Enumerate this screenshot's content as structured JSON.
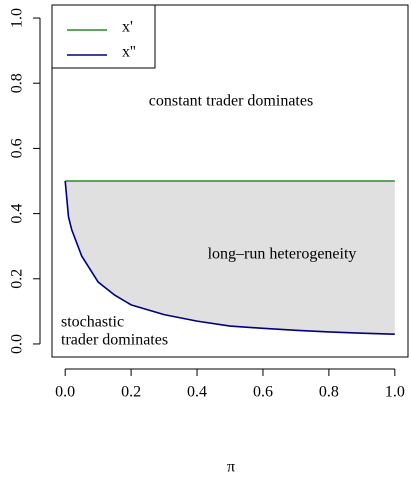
{
  "chart_data": {
    "type": "line",
    "x_label": "π",
    "x": [
      0,
      0.01,
      0.02,
      0.05,
      0.1,
      0.15,
      0.2,
      0.3,
      0.4,
      0.5,
      0.6,
      0.7,
      0.8,
      0.9,
      1.0
    ],
    "series": [
      {
        "name": "x'",
        "color": "#2a8a2a",
        "values": [
          0.5,
          0.5,
          0.5,
          0.5,
          0.5,
          0.5,
          0.5,
          0.5,
          0.5,
          0.5,
          0.5,
          0.5,
          0.5,
          0.5,
          0.5
        ]
      },
      {
        "name": "x''",
        "color": "#00007f",
        "values": [
          0.5,
          0.39,
          0.35,
          0.27,
          0.19,
          0.15,
          0.12,
          0.09,
          0.07,
          0.055,
          0.048,
          0.042,
          0.037,
          0.033,
          0.03
        ]
      }
    ],
    "shade_color": "#e0e0e0",
    "annotations": [
      "constant trader dominates",
      "long–run heterogeneity",
      "stochastic",
      "trader dominates"
    ],
    "xlim": [
      -0.04,
      1.04
    ],
    "ylim": [
      -0.04,
      1.04
    ],
    "xticks": [
      {
        "value": 0,
        "label": "0.0"
      },
      0.2,
      0.4,
      0.6,
      0.8,
      {
        "value": 1,
        "label": "1.0"
      }
    ],
    "yticks": [
      {
        "value": 0,
        "label": "0.0"
      },
      0.2,
      0.4,
      0.6,
      0.8,
      {
        "value": 1,
        "label": "1.0"
      }
    ],
    "legend": "top-left"
  }
}
